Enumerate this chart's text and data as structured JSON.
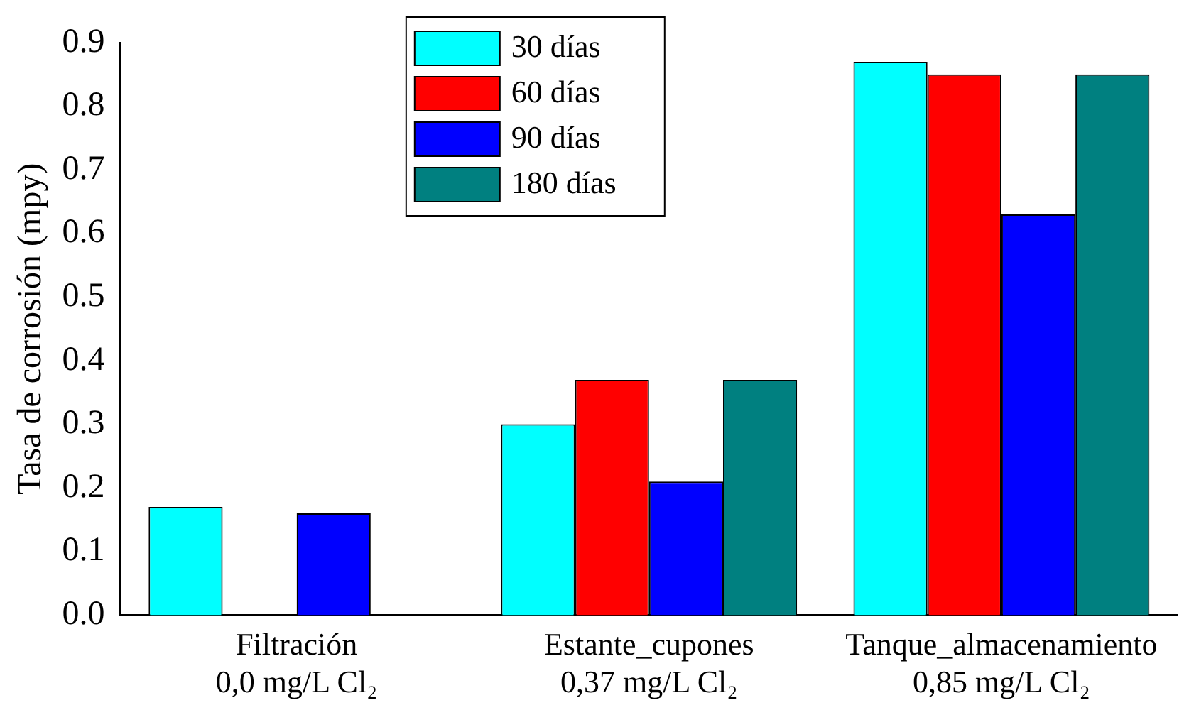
{
  "chart_data": {
    "type": "bar",
    "ylabel": "Tasa de corrosión (mpy)",
    "categories": [
      "Filtración\n0,0 mg/L Cl₂",
      "Estante_cupones\n0,37 mg/L Cl₂",
      "Tanque_almacenamiento\n0,85 mg/L Cl₂"
    ],
    "series": [
      {
        "name": "30 días",
        "color": "#00ffff",
        "values": [
          0.17,
          0.3,
          0.87
        ]
      },
      {
        "name": "60 días",
        "color": "#ff0000",
        "values": [
          null,
          0.37,
          0.85
        ]
      },
      {
        "name": "90 días",
        "color": "#0000ff",
        "values": [
          0.16,
          0.21,
          0.63
        ]
      },
      {
        "name": "180 días",
        "color": "#008080",
        "values": [
          null,
          0.37,
          0.85
        ]
      }
    ],
    "ylim": [
      0,
      0.9
    ],
    "yticks": [
      {
        "value": 0,
        "label": "0.0"
      },
      0.1,
      0.2,
      0.3,
      0.4,
      0.5,
      0.6,
      0.7,
      0.8,
      0.9
    ],
    "grid": false,
    "legend": "top"
  }
}
